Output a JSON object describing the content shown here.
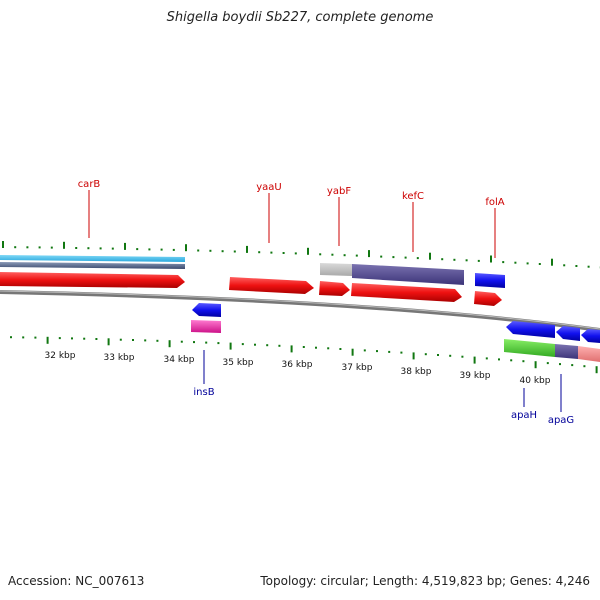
{
  "title": "Shigella boydii Sb227, complete genome",
  "footer": {
    "accession": "Accession: NC_007613",
    "summary": "Topology: circular; Length: 4,519,823 bp; Genes: 4,246"
  },
  "scale_labels": [
    "32 kbp",
    "33 kbp",
    "34 kbp",
    "35 kbp",
    "36 kbp",
    "37 kbp",
    "38 kbp",
    "39 kbp",
    "40 kbp"
  ],
  "top_genes": [
    "carB",
    "yaaU",
    "yabF",
    "kefC",
    "folA"
  ],
  "bottom_genes": [
    "insB",
    "apaH",
    "apaG"
  ],
  "colors": {
    "forward": "#ee1111",
    "reverse": "#1111ee",
    "tick": "#117711",
    "label_top": "#cc0000",
    "label_bottom": "#000099",
    "backbone": "#777777"
  }
}
